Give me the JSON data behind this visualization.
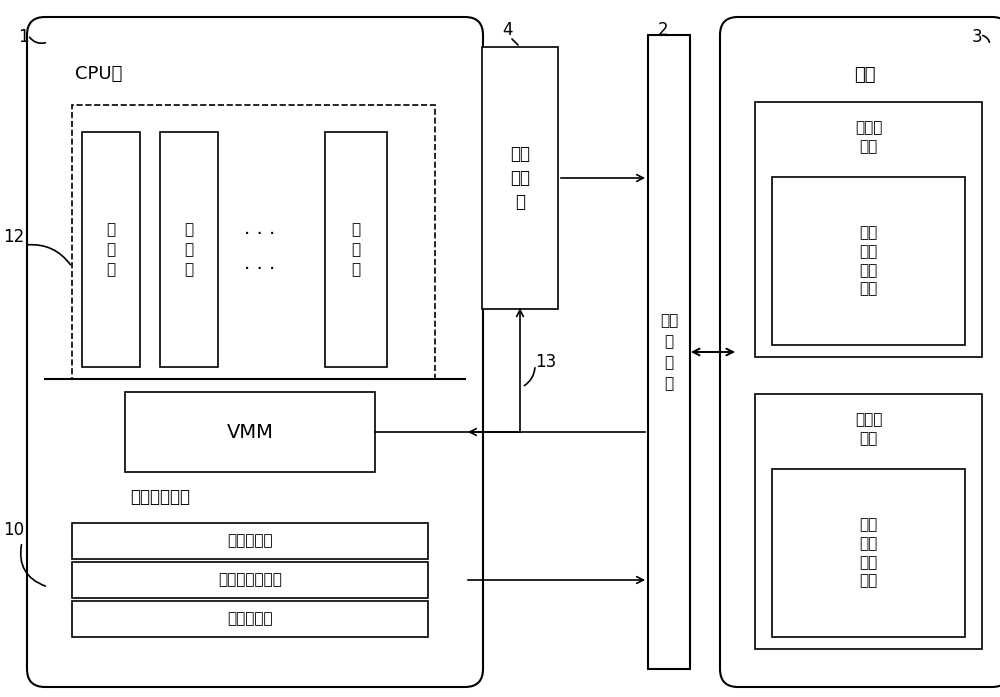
{
  "bg_color": "#ffffff",
  "line_color": "#000000",
  "font_size_label": 12,
  "font_size_number": 12,
  "font_size_small": 11,
  "font_size_vmm": 14,
  "labels": {
    "cpu_core": "CPU核",
    "vmm": "VMM",
    "host_os": "主机操作系统",
    "vm1": "虚\n拟\n机",
    "vm2": "虚\n拟\n机",
    "vm3": "虚\n拟\n机",
    "safe_proc": "安全\n处理\n器",
    "mem_ctrl": "内存\n控\n制\n器",
    "memory": "内存",
    "vm_mem1": "虚拟机\n内存",
    "vm_mem2": "虚拟机\n内存",
    "vm_state1": "虚拟\n机状\n态保\n存区",
    "vm_state2": "虚拟\n机状\n态保\n存区",
    "target_reg": "目标寄存器",
    "target_addr_reg": "目标地址寄存器",
    "enable_reg": "使能寄存器",
    "num1": "1",
    "num2": "2",
    "num3": "3",
    "num4": "4",
    "num10": "10",
    "num12": "12",
    "num13": "13"
  }
}
